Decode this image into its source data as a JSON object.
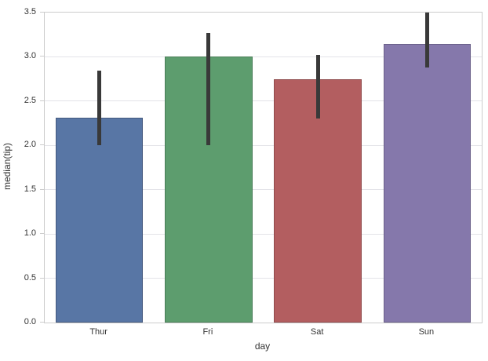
{
  "chart_data": {
    "type": "bar",
    "title": "",
    "xlabel": "day",
    "ylabel": "median(tip)",
    "categories": [
      "Thur",
      "Fri",
      "Sat",
      "Sun"
    ],
    "values": [
      2.31,
      3.0,
      2.75,
      3.15
    ],
    "error_bars": [
      {
        "low": 2.0,
        "high": 2.84
      },
      {
        "low": 2.0,
        "high": 3.27
      },
      {
        "low": 2.3,
        "high": 3.02
      },
      {
        "low": 2.88,
        "high": 3.5
      }
    ],
    "bar_colors": [
      "#5876A5",
      "#5D9D6E",
      "#B35E60",
      "#8578AB"
    ],
    "bar_edge_colors": [
      "#44597E",
      "#4A7D58",
      "#8F4B4D",
      "#6A6089"
    ],
    "error_bar_color": "#393939",
    "ylim": [
      0,
      3.5
    ],
    "ytick_labels": [
      "0.0",
      "0.5",
      "1.0",
      "1.5",
      "2.0",
      "2.5",
      "3.0",
      "3.5"
    ],
    "grid": true,
    "legend": "none",
    "colors": {
      "grid_line": "#E3E3E8",
      "axis_spine": "#CCCCCC",
      "tick_mark": "#CCCCCC",
      "text": "#333333"
    }
  }
}
